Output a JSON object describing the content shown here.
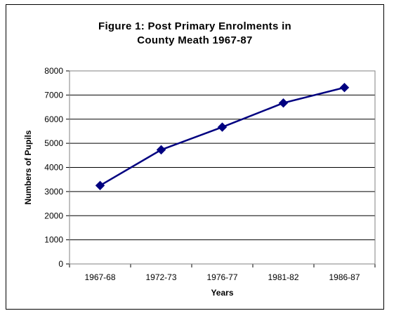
{
  "chart_data": {
    "type": "line",
    "title": "Figure 1: Post Primary Enrolments in",
    "subtitle": "County Meath 1967-87",
    "xlabel": "Years",
    "ylabel": "Numbers of Pupils",
    "categories": [
      "1967-68",
      "1972-73",
      "1976-77",
      "1981-82",
      "1986-87"
    ],
    "series": [
      {
        "values": [
          3250,
          4730,
          5670,
          6670,
          7310
        ]
      }
    ],
    "ylim": [
      0,
      8000
    ],
    "yticks": [
      "0",
      "1000",
      "2000",
      "3000",
      "4000",
      "5000",
      "6000",
      "7000",
      "8000"
    ],
    "grid": true,
    "legend": "none",
    "line_color": "#000080",
    "marker": "diamond"
  }
}
